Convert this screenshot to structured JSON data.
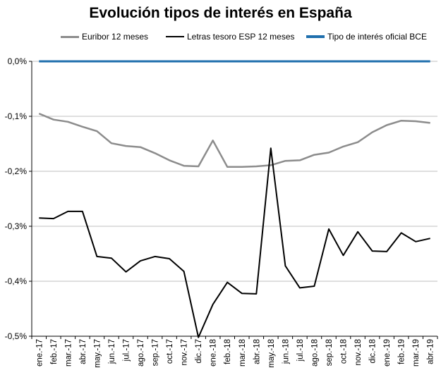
{
  "chart_data": {
    "type": "line",
    "title": "Evolución tipos de interés en España",
    "xlabel": "",
    "ylabel": "",
    "ylim": [
      -0.5,
      0.0
    ],
    "y_ticks": [
      0.0,
      -0.1,
      -0.2,
      -0.3,
      -0.4,
      -0.5
    ],
    "y_tick_labels": [
      "0,0%",
      "-0,1%",
      "-0,2%",
      "-0,3%",
      "-0,4%",
      "-0,5%"
    ],
    "grid": "horizontal",
    "legend_position": "top",
    "x_tick_labels": [
      "ene.-17",
      "feb.-17",
      "mar.-17",
      "abr.-17",
      "may.-17",
      "jun.-17",
      "jul.-17",
      "ago.-17",
      "sep.-17",
      "oct.-17",
      "nov.-17",
      "dic.-17",
      "ene.-18",
      "feb.-18",
      "mar.-18",
      "abr.-18",
      "may.-18",
      "jun.-18",
      "jul.-18",
      "ago.-18",
      "sep.-18",
      "oct.-18",
      "nov.-18",
      "dic.-18",
      "ene.-19",
      "feb.-19",
      "mar.-19",
      "abr.-19"
    ],
    "series": [
      {
        "name": "Euribor 12 meses",
        "color": "#8c8c8c",
        "values": [
          -0.095,
          -0.106,
          -0.11,
          -0.119,
          -0.127,
          -0.149,
          -0.154,
          -0.156,
          -0.167,
          -0.18,
          -0.19,
          -0.191,
          -0.144,
          -0.192,
          -0.192,
          -0.191,
          -0.189,
          -0.181,
          -0.18,
          -0.17,
          -0.166,
          -0.155,
          -0.147,
          -0.129,
          -0.116,
          -0.108,
          -0.109,
          -0.112
        ]
      },
      {
        "name": "Letras tesoro ESP 12 meses",
        "color": "#000000",
        "values": [
          -0.285,
          -0.286,
          -0.273,
          -0.273,
          -0.355,
          -0.358,
          -0.383,
          -0.363,
          -0.355,
          -0.359,
          -0.382,
          -0.502,
          -0.442,
          -0.402,
          -0.422,
          -0.423,
          -0.158,
          -0.372,
          -0.412,
          -0.409,
          -0.305,
          -0.353,
          -0.31,
          -0.345,
          -0.346,
          -0.312,
          -0.328,
          -0.322
        ]
      },
      {
        "name": "Tipo de interés oficial BCE",
        "color": "#1f6fad",
        "values": [
          0,
          0,
          0,
          0,
          0,
          0,
          0,
          0,
          0,
          0,
          0,
          0,
          0,
          0,
          0,
          0,
          0,
          0,
          0,
          0,
          0,
          0,
          0,
          0,
          0,
          0,
          0,
          0
        ]
      }
    ]
  }
}
